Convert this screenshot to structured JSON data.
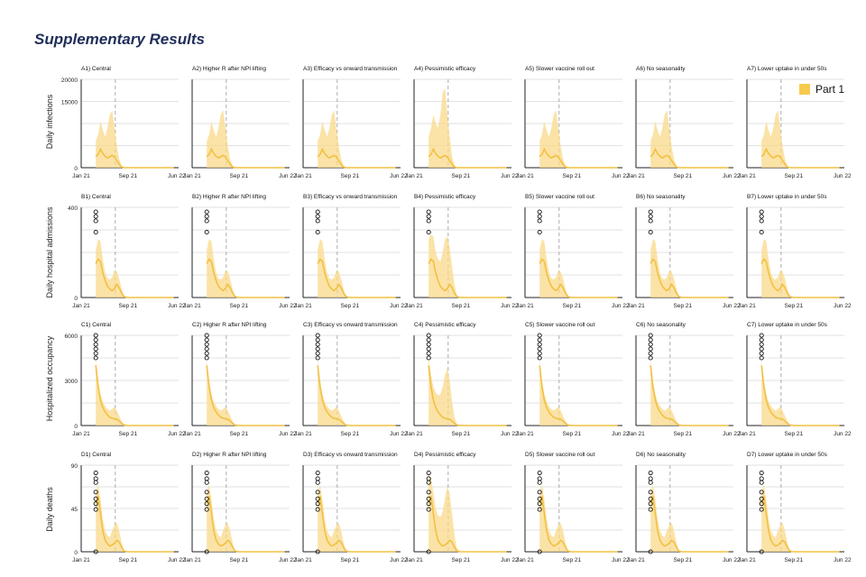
{
  "title": "Supplementary Results",
  "legend": {
    "label": "Part 1",
    "color": "#f7c94d"
  },
  "colors": {
    "band": "#f9d98a",
    "line": "#f2c042",
    "grid": "#d9d9d9",
    "vline": "#aaaaaa"
  },
  "chart_data": {
    "type": "area",
    "title": "Supplementary Results",
    "x_ticks": [
      "Jan 21",
      "Sep 21",
      "Jun 22"
    ],
    "columns": [
      "A1) Central",
      "A2) Higher R after NPI lifting",
      "A3) Efficacy vs onward transmission",
      "A4) Pessimistic efficacy",
      "A5) Slower vaccine roll out",
      "A6) No seasonality",
      "A7) Lower uptake in under 50s"
    ],
    "rows": [
      {
        "ylabel": "Daily infections",
        "ylim": [
          0,
          20000
        ],
        "y_ticks": [
          "20000",
          "15000",
          "0"
        ],
        "panel_titles": [
          "A1) Central",
          "A2) Higher R after NPI lifting",
          "A3) Efficacy vs onward transmission",
          "A4) Pessimistic efficacy",
          "A5) Slower vaccine roll out",
          "A6) No seasonality",
          "A7) Lower uptake in under 50s"
        ],
        "observed": []
      },
      {
        "ylabel": "Daily hospital admissions",
        "ylim": [
          0,
          400
        ],
        "y_ticks": [
          "400",
          "0"
        ],
        "panel_titles": [
          "B1) Central",
          "B2) Higher R after NPI lifting",
          "B3) Efficacy vs onward transmission",
          "B4) Pessimistic efficacy",
          "B5) Slower vaccine roll out",
          "B6) No seasonality",
          "B7) Lower uptake in under 50s"
        ],
        "observed": [
          380,
          360,
          340,
          290
        ]
      },
      {
        "ylabel": "Hospitalized occupancy",
        "ylim": [
          0,
          6000
        ],
        "y_ticks": [
          "6000",
          "3000",
          "0"
        ],
        "panel_titles": [
          "C1) Central",
          "C2) Higher R after NPI lifting",
          "C3) Efficacy vs onward transmission",
          "C4) Pessimistic efficacy",
          "C5) Slower vaccine roll out",
          "C6) No seasonality",
          "C7) Lower uptake in under 50s"
        ],
        "observed": [
          6000,
          5700,
          5400,
          5100,
          4800,
          4500
        ]
      },
      {
        "ylabel": "Daily deaths",
        "ylim": [
          0,
          90
        ],
        "y_ticks": [
          "90",
          "45",
          "0"
        ],
        "panel_titles": [
          "D1) Central",
          "D2) Higher R after NPI lifting",
          "D3) Efficacy vs onward transmission",
          "D4) Pessimistic efficacy",
          "D5) Slower vaccine roll out",
          "D6) No seasonality",
          "D7) Lower uptake in under 50s"
        ],
        "observed": [
          82,
          76,
          72,
          62,
          55,
          50,
          44,
          0
        ]
      }
    ],
    "series": [
      {
        "name": "Part 1",
        "x": [
          0,
          0.03,
          0.06,
          0.09,
          0.12,
          0.15,
          0.18,
          0.21,
          0.24,
          0.27,
          0.3,
          0.33,
          0.36,
          0.4,
          0.44,
          0.5,
          0.6,
          0.7,
          0.8,
          0.9,
          1.0
        ],
        "median_by_row": [
          [
            2500,
            3000,
            4200,
            3200,
            2600,
            2200,
            2500,
            2800,
            2400,
            1600,
            800,
            200,
            0,
            0,
            0,
            0,
            0,
            0,
            0,
            0,
            0
          ],
          [
            150,
            170,
            160,
            110,
            75,
            50,
            38,
            30,
            40,
            58,
            44,
            20,
            5,
            0,
            0,
            0,
            0,
            0,
            0,
            0,
            0
          ],
          [
            4000,
            2600,
            1700,
            1200,
            900,
            700,
            550,
            480,
            450,
            420,
            300,
            150,
            40,
            0,
            0,
            0,
            0,
            0,
            0,
            0,
            0
          ],
          [
            50,
            58,
            40,
            22,
            12,
            8,
            6,
            7,
            9,
            12,
            10,
            5,
            1,
            0,
            0,
            0,
            0,
            0,
            0,
            0,
            0
          ]
        ],
        "upper_by_row": [
          [
            6000,
            7500,
            10500,
            8500,
            7000,
            9000,
            12000,
            13000,
            9000,
            5000,
            2000,
            500,
            0,
            0,
            0,
            0,
            0,
            0,
            0,
            0,
            0
          ],
          [
            210,
            260,
            250,
            170,
            110,
            85,
            80,
            90,
            120,
            115,
            85,
            40,
            10,
            0,
            0,
            0,
            0,
            0,
            0,
            0,
            0
          ],
          [
            4300,
            3000,
            2100,
            1600,
            1300,
            1100,
            1000,
            1100,
            1250,
            1000,
            650,
            300,
            80,
            0,
            0,
            0,
            0,
            0,
            0,
            0,
            0
          ],
          [
            62,
            70,
            55,
            34,
            22,
            17,
            15,
            22,
            28,
            30,
            22,
            10,
            2,
            0,
            0,
            0,
            0,
            0,
            0,
            0,
            0
          ]
        ]
      }
    ],
    "pessimistic_upper": [
      [
        7000,
        9000,
        12000,
        10000,
        9000,
        12000,
        17000,
        18000,
        12000,
        7000,
        2500,
        600,
        0,
        0,
        0,
        0,
        0,
        0,
        0,
        0,
        0
      ],
      [
        260,
        280,
        270,
        200,
        170,
        160,
        200,
        260,
        270,
        220,
        140,
        60,
        10,
        0,
        0,
        0,
        0,
        0,
        0,
        0,
        0
      ],
      [
        4500,
        3400,
        2600,
        2200,
        2000,
        2100,
        2600,
        3400,
        3800,
        3000,
        1600,
        600,
        120,
        0,
        0,
        0,
        0,
        0,
        0,
        0,
        0
      ],
      [
        80,
        76,
        62,
        45,
        38,
        36,
        42,
        56,
        68,
        60,
        40,
        18,
        4,
        0,
        0,
        0,
        0,
        0,
        0,
        0,
        0
      ]
    ]
  }
}
